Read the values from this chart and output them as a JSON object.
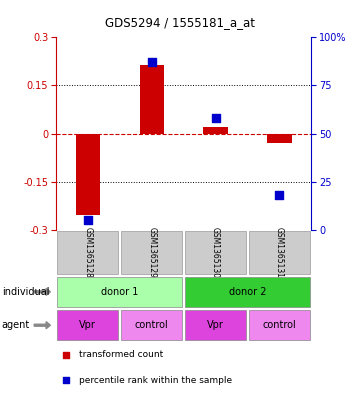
{
  "title": "GDS5294 / 1555181_a_at",
  "samples": [
    "GSM1365128",
    "GSM1365129",
    "GSM1365130",
    "GSM1365131"
  ],
  "bar_values": [
    -0.255,
    0.215,
    0.02,
    -0.028
  ],
  "percentile_values": [
    5,
    87,
    58,
    18
  ],
  "ylim_left": [
    -0.3,
    0.3
  ],
  "ylim_right": [
    0,
    100
  ],
  "yticks_left": [
    -0.3,
    -0.15,
    0,
    0.15,
    0.3
  ],
  "yticks_right": [
    0,
    25,
    50,
    75,
    100
  ],
  "ytick_labels_left": [
    "-0.3",
    "-0.15",
    "0",
    "0.15",
    "0.3"
  ],
  "ytick_labels_right": [
    "0",
    "25",
    "50",
    "75",
    "100%"
  ],
  "bar_color": "#cc0000",
  "dot_color": "#0000cc",
  "zero_line_color": "#cc0000",
  "grid_color": "#000000",
  "individual_groups": [
    {
      "label": "donor 1",
      "span": [
        0,
        2
      ],
      "color": "#aaffaa"
    },
    {
      "label": "donor 2",
      "span": [
        2,
        4
      ],
      "color": "#33cc33"
    }
  ],
  "agent_groups": [
    {
      "label": "Vpr",
      "span": [
        0,
        1
      ]
    },
    {
      "label": "control",
      "span": [
        1,
        2
      ]
    },
    {
      "label": "Vpr",
      "span": [
        2,
        3
      ]
    },
    {
      "label": "control",
      "span": [
        3,
        4
      ]
    }
  ],
  "agent_colors": [
    "#dd44dd",
    "#ee88ee",
    "#dd44dd",
    "#ee88ee"
  ],
  "sample_box_color": "#cccccc",
  "legend_red_label": "transformed count",
  "legend_blue_label": "percentile rank within the sample",
  "individual_label": "individual",
  "agent_label": "agent",
  "fig_width": 3.6,
  "fig_height": 3.93,
  "dpi": 100
}
